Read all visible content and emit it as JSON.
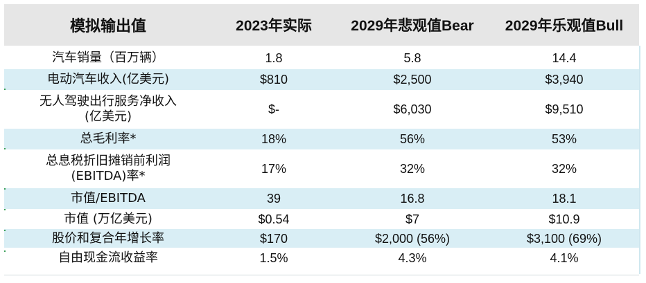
{
  "table": {
    "headers": [
      "模拟输出值",
      "2023年实际",
      "2029年悲观值Bear",
      "2029年乐观值Bull"
    ],
    "rows": [
      [
        "汽车销量（百万辆）",
        "1.8",
        "5.8",
        "14.4"
      ],
      [
        "电动汽车收入(亿美元)",
        "$810",
        "$2,500",
        "$3,940"
      ],
      [
        "无人驾驶出行服务净收入\n(亿美元)",
        "$-",
        "$6,030",
        "$9,510"
      ],
      [
        "总毛利率*",
        "18%",
        "56%",
        "53%"
      ],
      [
        "总息税折旧摊销前利润\n(EBITDA)率*",
        "17%",
        "32%",
        "32%"
      ],
      [
        "市值/EBITDA",
        "39",
        "16.8",
        "18.1"
      ],
      [
        "市值 (万亿美元)",
        "$0.54",
        "$7",
        "$10.9"
      ],
      [
        "股价和复合年增长率",
        "$170",
        "$2,000 (56%)",
        "$3,100 (69%)"
      ],
      [
        "自由现金流收益率",
        "1.5%",
        "4.3%",
        "4.1%"
      ]
    ]
  },
  "colors": {
    "header_bg": "#e6e6e6",
    "stripe_bg": "#d9eef5",
    "row_bg": "#ffffff"
  }
}
